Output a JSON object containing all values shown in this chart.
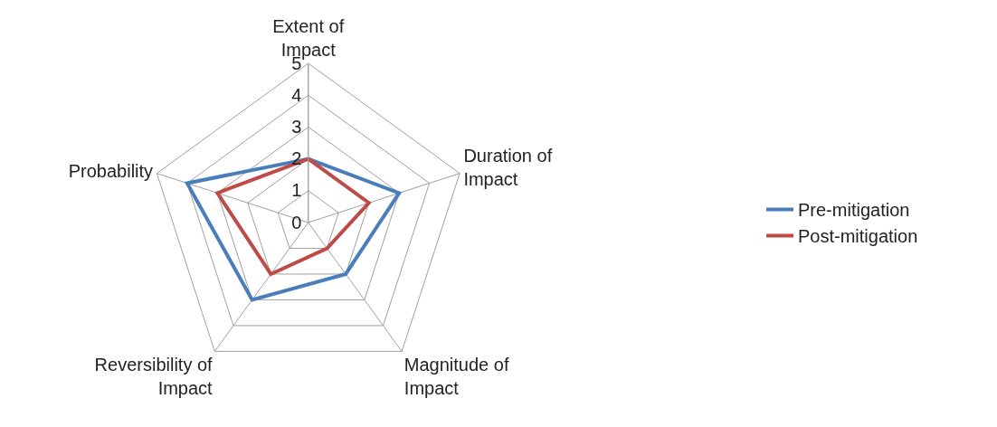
{
  "chart_data": {
    "type": "radar",
    "categories": [
      "Extent of Impact",
      "Duration of Impact",
      "Magnitude of Impact",
      "Reversibility of Impact",
      "Probability"
    ],
    "series": [
      {
        "name": "Pre-mitigation",
        "color": "#4a7ebb",
        "values": [
          2,
          3,
          2,
          3,
          4
        ]
      },
      {
        "name": "Post-mitigation",
        "color": "#be4b48",
        "values": [
          2,
          2,
          1,
          2,
          3
        ]
      }
    ],
    "ylim": [
      0,
      5
    ],
    "yticks": [
      0,
      1,
      2,
      3,
      4,
      5
    ],
    "grid": true,
    "legend": "right",
    "marker": "none",
    "line_style": "solid"
  }
}
